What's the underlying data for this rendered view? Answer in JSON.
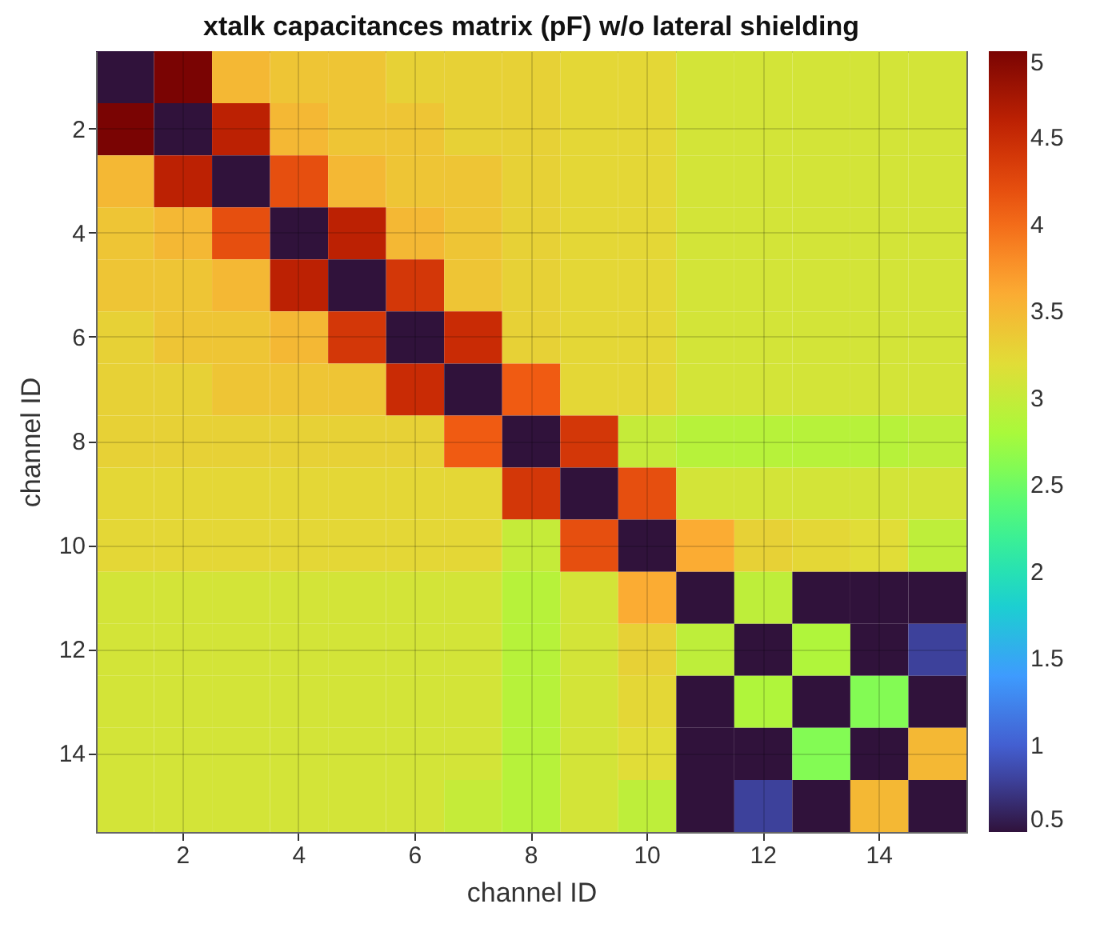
{
  "chart_data": {
    "type": "heatmap",
    "title": "xtalk capacitances matrix (pF) w/o lateral shielding",
    "xlabel": "channel ID",
    "ylabel": "channel ID",
    "categories": [
      null,
      "2",
      null,
      "4",
      null,
      "6",
      null,
      "8",
      null,
      "10",
      null,
      "12",
      null,
      "14",
      null
    ],
    "y_categories": [
      null,
      "2",
      null,
      "4",
      null,
      "6",
      null,
      "8",
      null,
      "10",
      null,
      "12",
      null,
      "14",
      null
    ],
    "cells": [
      [
        0.5,
        5,
        3.5,
        3.4,
        3.4,
        3.3,
        3.3,
        3.3,
        3.25,
        3.25,
        3.1,
        3.1,
        3.1,
        3.1,
        3.1
      ],
      [
        5,
        0.5,
        4.6,
        3.5,
        3.4,
        3.4,
        3.3,
        3.3,
        3.25,
        3.25,
        3.1,
        3.1,
        3.1,
        3.1,
        3.1
      ],
      [
        3.5,
        4.6,
        0.5,
        4.2,
        3.5,
        3.4,
        3.4,
        3.3,
        3.25,
        3.25,
        3.1,
        3.1,
        3.1,
        3.1,
        3.1
      ],
      [
        3.4,
        3.5,
        4.2,
        0.5,
        4.6,
        3.5,
        3.4,
        3.3,
        3.25,
        3.25,
        3.1,
        3.1,
        3.1,
        3.1,
        3.1
      ],
      [
        3.4,
        3.4,
        3.5,
        4.6,
        0.5,
        4.4,
        3.4,
        3.3,
        3.25,
        3.25,
        3.1,
        3.1,
        3.1,
        3.1,
        3.1
      ],
      [
        3.3,
        3.4,
        3.4,
        3.5,
        4.4,
        0.5,
        4.5,
        3.3,
        3.25,
        3.25,
        3.1,
        3.1,
        3.1,
        3.1,
        3.1
      ],
      [
        3.3,
        3.3,
        3.4,
        3.4,
        3.4,
        4.5,
        0.5,
        4.1,
        3.25,
        3.25,
        3.1,
        3.1,
        3.1,
        3.1,
        3.1
      ],
      [
        3.3,
        3.3,
        3.3,
        3.3,
        3.3,
        3.3,
        4.1,
        0.5,
        4.4,
        3.0,
        2.9,
        2.9,
        2.9,
        2.9,
        2.95
      ],
      [
        3.25,
        3.25,
        3.25,
        3.25,
        3.25,
        3.25,
        3.25,
        4.4,
        0.5,
        4.2,
        3.1,
        3.1,
        3.1,
        3.1,
        3.1
      ],
      [
        3.25,
        3.25,
        3.25,
        3.25,
        3.25,
        3.25,
        3.25,
        3.0,
        4.2,
        0.5,
        3.6,
        3.3,
        3.25,
        3.2,
        2.95
      ],
      [
        3.1,
        3.1,
        3.1,
        3.1,
        3.1,
        3.1,
        3.1,
        2.9,
        3.1,
        3.6,
        0.5,
        2.95,
        0.5,
        0.5,
        0.5
      ],
      [
        3.1,
        3.1,
        3.1,
        3.1,
        3.1,
        3.1,
        3.1,
        2.9,
        3.1,
        3.3,
        2.95,
        0.5,
        2.85,
        0.5,
        0.8
      ],
      [
        3.1,
        3.1,
        3.1,
        3.1,
        3.1,
        3.1,
        3.1,
        2.9,
        3.1,
        3.25,
        0.5,
        2.85,
        0.5,
        2.6,
        0.5
      ],
      [
        3.1,
        3.1,
        3.1,
        3.1,
        3.1,
        3.1,
        3.1,
        2.9,
        3.1,
        3.2,
        0.5,
        0.5,
        2.6,
        0.5,
        3.5
      ],
      [
        3.1,
        3.1,
        3.1,
        3.1,
        3.1,
        3.1,
        3.0,
        2.9,
        3.1,
        2.95,
        0.5,
        0.8,
        0.5,
        3.5,
        0.5
      ]
    ],
    "clim": [
      0.5,
      5
    ],
    "cticks": [
      0.5,
      1,
      1.5,
      2,
      2.5,
      3,
      3.5,
      4,
      4.5,
      5
    ],
    "grid": true
  }
}
